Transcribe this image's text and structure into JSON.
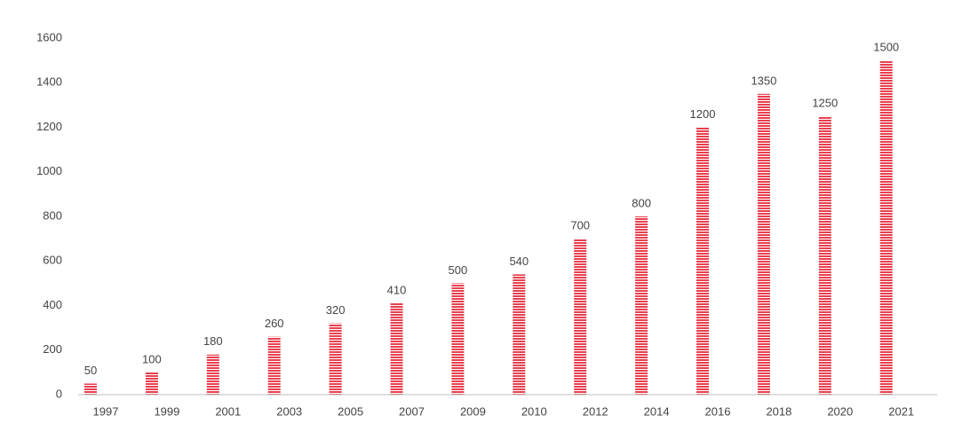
{
  "chart_data": {
    "type": "bar",
    "categories": [
      "1997",
      "1999",
      "2001",
      "2003",
      "2005",
      "2007",
      "2009",
      "2010",
      "2012",
      "2014",
      "2016",
      "2018",
      "2020",
      "2021"
    ],
    "values": [
      50,
      100,
      180,
      260,
      320,
      410,
      500,
      540,
      700,
      800,
      1200,
      1350,
      1250,
      1500
    ],
    "color": "#e8404f",
    "ylim": [
      0,
      1600
    ],
    "yticks": [
      0,
      200,
      400,
      600,
      800,
      1000,
      1200,
      1400,
      1600
    ],
    "grid": false
  }
}
